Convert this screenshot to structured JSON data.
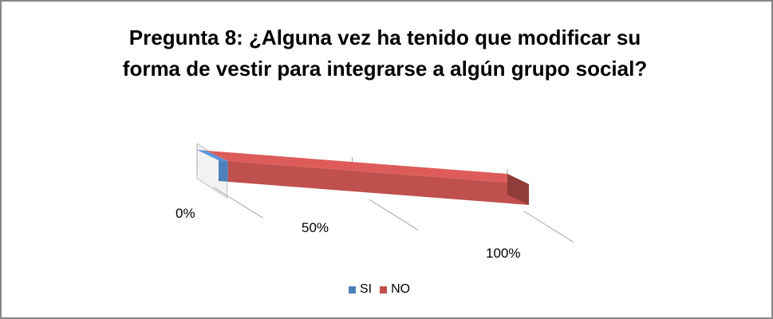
{
  "chart_data": {
    "type": "bar",
    "orientation": "horizontal",
    "style": "3d-stacked-100",
    "title_lines": [
      "Pregunta 8: ¿Alguna vez ha tenido que modificar su",
      "forma de vestir para integrarse a algún grupo social?"
    ],
    "x_ticks": [
      "0%",
      "50%",
      "100%"
    ],
    "xlim": [
      0,
      100
    ],
    "series": [
      {
        "name": "SI",
        "values": [
          3
        ],
        "color": "#4F81BD"
      },
      {
        "name": "NO",
        "values": [
          97
        ],
        "color": "#C0504D"
      }
    ],
    "legend_position": "bottom",
    "grid": true
  }
}
